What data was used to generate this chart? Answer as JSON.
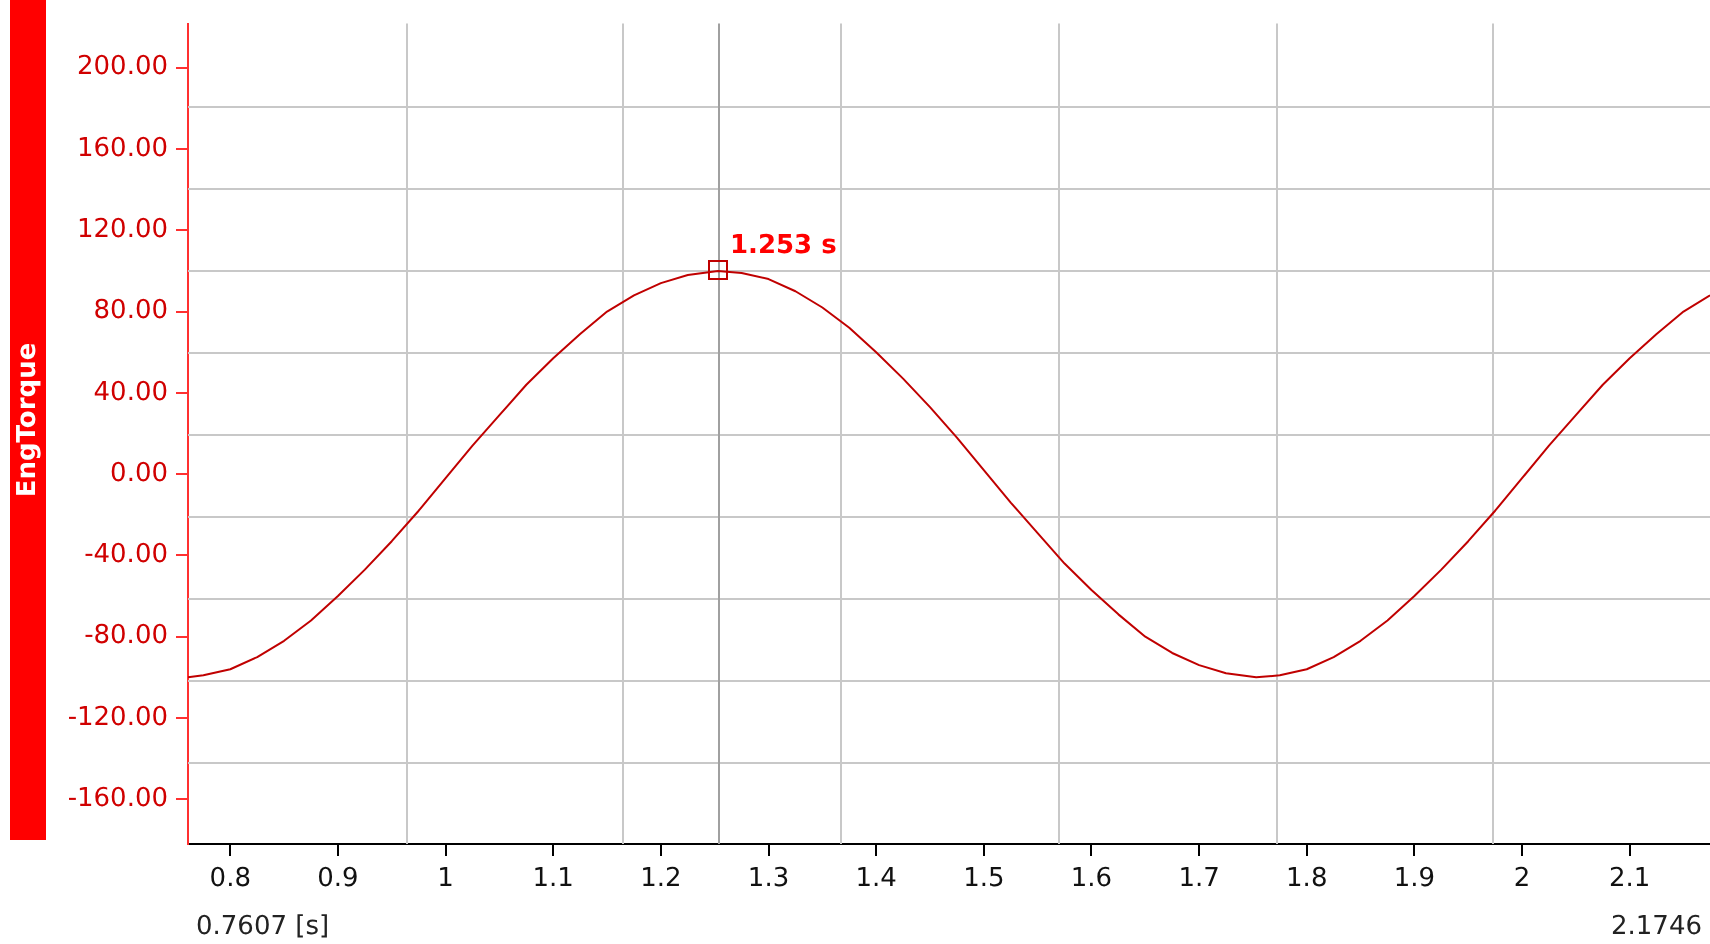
{
  "chart_data": {
    "type": "line",
    "ylabel": "EngTorque",
    "x": [
      0.7607,
      0.775,
      0.8,
      0.825,
      0.85,
      0.875,
      0.9,
      0.925,
      0.95,
      0.975,
      1.0,
      1.025,
      1.05,
      1.075,
      1.1,
      1.125,
      1.15,
      1.175,
      1.2,
      1.225,
      1.253,
      1.275,
      1.3,
      1.325,
      1.35,
      1.375,
      1.4,
      1.425,
      1.45,
      1.475,
      1.5,
      1.525,
      1.55,
      1.575,
      1.6,
      1.625,
      1.65,
      1.675,
      1.7,
      1.725,
      1.753,
      1.775,
      1.8,
      1.825,
      1.85,
      1.875,
      1.9,
      1.925,
      1.95,
      1.975,
      2.0,
      2.025,
      2.05,
      2.075,
      2.1,
      2.125,
      2.15,
      2.1746
    ],
    "series": [
      {
        "color": "#c00000",
        "values": [
          -100,
          -99,
          -96,
          -90,
          -82,
          -72,
          -60,
          -47,
          -33,
          -18,
          -2,
          14,
          29,
          44,
          57,
          69,
          80,
          88,
          94,
          98,
          100,
          99,
          96,
          90,
          82,
          72,
          60,
          47,
          33,
          18,
          2,
          -14,
          -29,
          -44,
          -57,
          -69,
          -80,
          -88,
          -94,
          -98,
          -100,
          -99,
          -96,
          -90,
          -82,
          -72,
          -60,
          -47,
          -33,
          -18,
          -2,
          14,
          29,
          44,
          57,
          69,
          80,
          88
        ]
      }
    ],
    "xlim": [
      0.7607,
      2.1746
    ],
    "xticks": [
      0.8,
      0.9,
      1,
      1.1,
      1.2,
      1.3,
      1.4,
      1.5,
      1.6,
      1.7,
      1.8,
      1.9,
      2,
      2.1
    ],
    "ylim": [
      -182,
      221.7
    ],
    "yticks": [
      {
        "value": -160,
        "label": "-160.00"
      },
      {
        "value": -120,
        "label": "-120.00"
      },
      {
        "value": -80,
        "label": "-80.00"
      },
      {
        "value": -40,
        "label": "-40.00"
      },
      {
        "value": 0,
        "label": "0.00"
      },
      {
        "value": 40,
        "label": "40.00"
      },
      {
        "value": 80,
        "label": "80.00"
      },
      {
        "value": 120,
        "label": "120.00"
      },
      {
        "value": 160,
        "label": "160.00"
      },
      {
        "value": 200,
        "label": "200.00"
      }
    ],
    "ref_lines": [
      {
        "axis": "x",
        "value": 1.253,
        "color": "#a0a0a0"
      }
    ],
    "annotations": [
      {
        "text": "1.253 s",
        "x": 1.253,
        "y": 100
      },
      "0.7607 [s]",
      "2.1746"
    ],
    "grid": true,
    "legend": false,
    "marker": "none",
    "line_style": "solid"
  }
}
